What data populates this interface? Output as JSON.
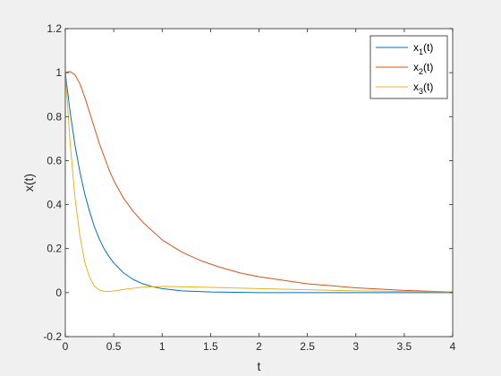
{
  "chart_data": {
    "type": "line",
    "xlabel": "t",
    "ylabel": "x(t)",
    "xlim": [
      0,
      4
    ],
    "ylim": [
      -0.2,
      1.2
    ],
    "x_ticks": [
      0,
      0.5,
      1,
      1.5,
      2,
      2.5,
      3,
      3.5,
      4
    ],
    "x_tick_labels": [
      "0",
      "0.5",
      "1",
      "1.5",
      "2",
      "2.5",
      "3",
      "3.5",
      "4"
    ],
    "y_ticks": [
      -0.2,
      0,
      0.2,
      0.4,
      0.6,
      0.8,
      1,
      1.2
    ],
    "y_tick_labels": [
      "-0.2",
      "0",
      "0.2",
      "0.4",
      "0.6",
      "0.8",
      "1",
      "1.2"
    ],
    "grid": false,
    "legend_position": "top-right",
    "series": [
      {
        "name": "x_1(t)",
        "legend_base": "x",
        "legend_sub": "1",
        "legend_suffix": "(t)",
        "color": "#0072bd",
        "points": [
          [
            0,
            1.0
          ],
          [
            0.05,
            0.82
          ],
          [
            0.1,
            0.67
          ],
          [
            0.15,
            0.55
          ],
          [
            0.2,
            0.45
          ],
          [
            0.25,
            0.37
          ],
          [
            0.3,
            0.3
          ],
          [
            0.35,
            0.245
          ],
          [
            0.4,
            0.2
          ],
          [
            0.45,
            0.165
          ],
          [
            0.5,
            0.135
          ],
          [
            0.6,
            0.09
          ],
          [
            0.7,
            0.06
          ],
          [
            0.8,
            0.04
          ],
          [
            0.9,
            0.027
          ],
          [
            1.0,
            0.018
          ],
          [
            1.2,
            0.008
          ],
          [
            1.5,
            0.003
          ],
          [
            2.0,
            0.0
          ],
          [
            2.5,
            0.0
          ],
          [
            3.0,
            0.0
          ],
          [
            3.5,
            0.0
          ],
          [
            4.0,
            0.0
          ]
        ]
      },
      {
        "name": "x_2(t)",
        "legend_base": "x",
        "legend_sub": "2",
        "legend_suffix": "(t)",
        "color": "#d95319",
        "points": [
          [
            0,
            1.0
          ],
          [
            0.05,
            1.005
          ],
          [
            0.1,
            0.99
          ],
          [
            0.15,
            0.95
          ],
          [
            0.2,
            0.89
          ],
          [
            0.25,
            0.82
          ],
          [
            0.3,
            0.75
          ],
          [
            0.35,
            0.68
          ],
          [
            0.4,
            0.62
          ],
          [
            0.45,
            0.56
          ],
          [
            0.5,
            0.51
          ],
          [
            0.6,
            0.43
          ],
          [
            0.7,
            0.37
          ],
          [
            0.8,
            0.32
          ],
          [
            0.9,
            0.28
          ],
          [
            1.0,
            0.24
          ],
          [
            1.2,
            0.185
          ],
          [
            1.4,
            0.145
          ],
          [
            1.6,
            0.115
          ],
          [
            1.8,
            0.09
          ],
          [
            2.0,
            0.072
          ],
          [
            2.5,
            0.04
          ],
          [
            3.0,
            0.022
          ],
          [
            3.5,
            0.01
          ],
          [
            4.0,
            0.003
          ]
        ]
      },
      {
        "name": "x_3(t)",
        "legend_base": "x",
        "legend_sub": "3",
        "legend_suffix": "(t)",
        "color": "#edb120",
        "points": [
          [
            0,
            1.0
          ],
          [
            0.05,
            0.68
          ],
          [
            0.1,
            0.43
          ],
          [
            0.15,
            0.26
          ],
          [
            0.2,
            0.14
          ],
          [
            0.25,
            0.07
          ],
          [
            0.3,
            0.03
          ],
          [
            0.35,
            0.012
          ],
          [
            0.4,
            0.006
          ],
          [
            0.45,
            0.005
          ],
          [
            0.5,
            0.007
          ],
          [
            0.6,
            0.014
          ],
          [
            0.7,
            0.02
          ],
          [
            0.8,
            0.025
          ],
          [
            0.9,
            0.027
          ],
          [
            1.0,
            0.028
          ],
          [
            1.2,
            0.027
          ],
          [
            1.5,
            0.024
          ],
          [
            2.0,
            0.018
          ],
          [
            2.5,
            0.013
          ],
          [
            3.0,
            0.008
          ],
          [
            3.5,
            0.005
          ],
          [
            4.0,
            0.003
          ]
        ]
      }
    ]
  }
}
